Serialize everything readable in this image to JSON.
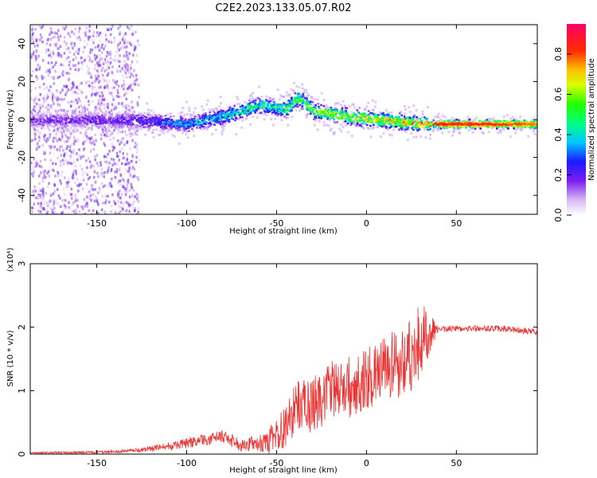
{
  "chart_data": [
    {
      "type": "heatmap",
      "title": "C2E2.2023.133.05.07.R02",
      "xlabel": "Height of straight line (km)",
      "ylabel": "Frequency (Hz)",
      "xlim": [
        -187,
        95
      ],
      "ylim": [
        -50,
        50
      ],
      "x_ticks": [
        -150,
        -100,
        -50,
        0,
        50
      ],
      "y_ticks": [
        -40,
        -20,
        0,
        20,
        40
      ],
      "colorbar": {
        "label": "Normalized spectral amplitude",
        "range": [
          0,
          0.95
        ],
        "ticks": [
          0.0,
          0.2,
          0.4,
          0.6,
          0.8
        ]
      },
      "ridge_center_hz": {
        "x": [
          -187,
          -130,
          -100,
          -80,
          -60,
          -45,
          -38,
          -30,
          -10,
          0,
          20,
          35,
          95
        ],
        "y": [
          0,
          0,
          -2,
          2,
          8,
          6,
          12,
          5,
          2,
          1,
          -1,
          -2,
          -2
        ]
      },
      "peak_amplitude": {
        "x": [
          -187,
          -130,
          -100,
          -60,
          -40,
          -30,
          0,
          30,
          40,
          95
        ],
        "y": [
          0.2,
          0.25,
          0.4,
          0.55,
          0.6,
          0.7,
          0.75,
          0.85,
          0.9,
          0.8
        ]
      }
    },
    {
      "type": "line",
      "xlabel": "Height of straight line (km)",
      "ylabel": "SNR (10 * v/v)",
      "y_scale_label": "(x10⁴)",
      "xlim": [
        -187,
        95
      ],
      "ylim": [
        0,
        3
      ],
      "x_ticks": [
        -150,
        -100,
        -50,
        0,
        50
      ],
      "y_ticks": [
        0,
        1,
        2,
        3
      ],
      "series": [
        {
          "name": "SNR",
          "color": "#ee3333",
          "trend": {
            "x": [
              -187,
              -150,
              -130,
              -110,
              -90,
              -80,
              -70,
              -55,
              -45,
              -38,
              -30,
              -20,
              -10,
              0,
              10,
              20,
              30,
              35,
              40,
              50,
              60,
              70,
              80,
              95
            ],
            "y": [
              0.02,
              0.03,
              0.05,
              0.12,
              0.22,
              0.28,
              0.15,
              0.18,
              0.45,
              0.8,
              0.75,
              1.0,
              1.05,
              1.2,
              1.3,
              1.45,
              1.75,
              1.9,
              1.97,
              1.98,
              1.98,
              1.98,
              1.97,
              1.92
            ]
          },
          "noise": {
            "x": [
              -187,
              -130,
              -100,
              -60,
              -45,
              -30,
              0,
              20,
              30,
              40,
              95
            ],
            "y": [
              0.01,
              0.03,
              0.08,
              0.12,
              0.35,
              0.45,
              0.5,
              0.6,
              0.65,
              0.05,
              0.05
            ]
          }
        }
      ]
    }
  ]
}
